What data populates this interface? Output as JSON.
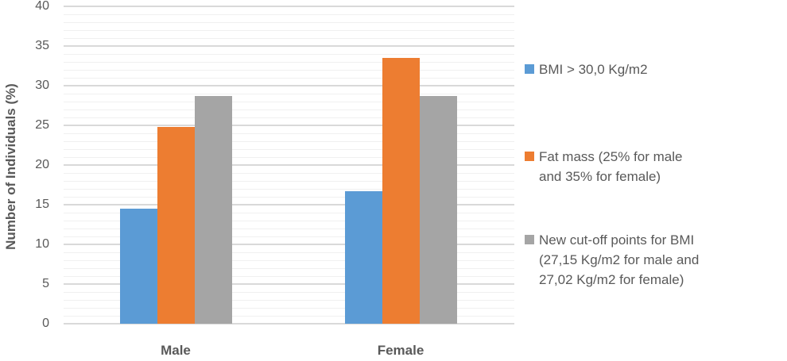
{
  "chart_data": {
    "type": "bar",
    "title": "",
    "xlabel": "",
    "ylabel": "Number of Individuals (%)",
    "ylim": [
      0,
      40
    ],
    "yticks": [
      0,
      5,
      10,
      15,
      20,
      25,
      30,
      35,
      40
    ],
    "grid": true,
    "legend_position": "right",
    "categories": [
      "Male",
      "Female"
    ],
    "series": [
      {
        "name": "BMI > 30,0 Kg/m2",
        "color": "#5B9BD5",
        "values": [
          14.5,
          16.7
        ]
      },
      {
        "name": "Fat mass  (25% for   male and 35% for female)",
        "color": "#ED7D31",
        "values": [
          24.8,
          33.5
        ]
      },
      {
        "name": "New cut-off points for BMI (27,15 Kg/m2 for male and 27,02 Kg/m2 for female)",
        "color": "#A5A5A5",
        "values": [
          28.7,
          28.7
        ]
      }
    ]
  },
  "axis": {
    "ylabel": "Number of Individuals (%)",
    "yticks": [
      "0",
      "5",
      "10",
      "15",
      "20",
      "25",
      "30",
      "35",
      "40"
    ],
    "categories": [
      "Male",
      "Female"
    ]
  },
  "legend": {
    "items": [
      {
        "lines": [
          "BMI > 30,0 Kg/m2"
        ],
        "color": "#5B9BD5"
      },
      {
        "lines": [
          "Fat mass  (25% for   male",
          "and 35% for female)"
        ],
        "color": "#ED7D31"
      },
      {
        "lines": [
          "New cut-off points for BMI",
          "(27,15 Kg/m2 for male and",
          "27,02 Kg/m2 for female)"
        ],
        "color": "#A5A5A5"
      }
    ]
  }
}
